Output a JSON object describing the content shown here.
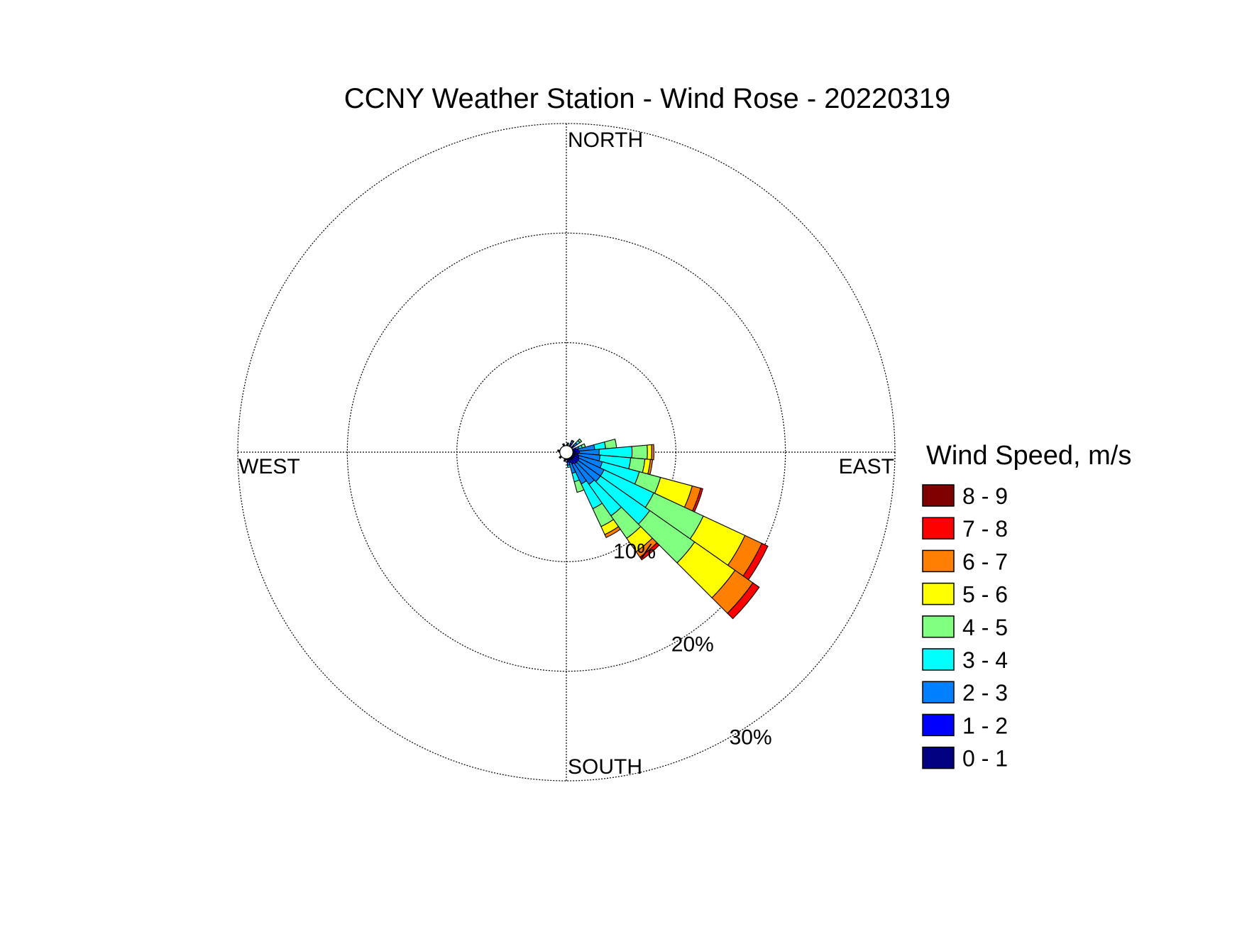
{
  "chart_data": {
    "type": "wind-rose",
    "title": "CCNY Weather Station - Wind Rose - 20220319",
    "directions": {
      "north": "NORTH",
      "east": "EAST",
      "south": "SOUTH",
      "west": "WEST"
    },
    "radial_axis": {
      "unit": "percent",
      "max": 30,
      "ticks": [
        10,
        20,
        30
      ],
      "tick_labels": [
        "10%",
        "20%",
        "30%"
      ]
    },
    "grid": true,
    "legend": {
      "title": "Wind Speed, m/s",
      "placement": "right",
      "bins": [
        {
          "label": "8 - 9",
          "color": "#800000"
        },
        {
          "label": "7 - 8",
          "color": "#ff0000"
        },
        {
          "label": "6 - 7",
          "color": "#ff8000"
        },
        {
          "label": "5 - 6",
          "color": "#ffff00"
        },
        {
          "label": "4 - 5",
          "color": "#80ff80"
        },
        {
          "label": "3 - 4",
          "color": "#00ffff"
        },
        {
          "label": "2 - 3",
          "color": "#0080ff"
        },
        {
          "label": "1 - 2",
          "color": "#0000ff"
        },
        {
          "label": "0 - 1",
          "color": "#000080"
        }
      ]
    },
    "calm_hole_percent": 0.6,
    "speed_bins_order": [
      "0 - 1",
      "1 - 2",
      "2 - 3",
      "3 - 4",
      "4 - 5",
      "5 - 6",
      "6 - 7",
      "7 - 8",
      "8 - 9"
    ],
    "sector_width_deg": 10,
    "sectors": [
      {
        "direction_deg": 10,
        "values": [
          0.05,
          0.1,
          0.1,
          0,
          0,
          0,
          0,
          0,
          0
        ]
      },
      {
        "direction_deg": 30,
        "values": [
          0.1,
          0.2,
          0.2,
          0.1,
          0,
          0,
          0,
          0,
          0
        ]
      },
      {
        "direction_deg": 50,
        "values": [
          0.1,
          0.2,
          0.3,
          0.3,
          0.2,
          0,
          0,
          0,
          0
        ]
      },
      {
        "direction_deg": 70,
        "values": [
          0.1,
          0.2,
          0.3,
          0.3,
          0.3,
          0,
          0,
          0,
          0
        ]
      },
      {
        "direction_deg": 80,
        "values": [
          0.2,
          0.3,
          1.5,
          1.0,
          1.0,
          0,
          0,
          0,
          0
        ]
      },
      {
        "direction_deg": 90,
        "values": [
          0.2,
          0.4,
          1.8,
          3.0,
          1.4,
          0.4,
          0.2,
          0,
          0
        ]
      },
      {
        "direction_deg": 100,
        "values": [
          0.2,
          0.3,
          2.0,
          2.8,
          1.3,
          0.5,
          0.2,
          0,
          0
        ]
      },
      {
        "direction_deg": 110,
        "values": [
          0.2,
          0.4,
          2.2,
          3.5,
          2.0,
          3.0,
          0.8,
          0.2,
          0
        ]
      },
      {
        "direction_deg": 120,
        "values": [
          0.2,
          0.5,
          2.5,
          5.0,
          5.0,
          4.2,
          1.7,
          0.6,
          0
        ]
      },
      {
        "direction_deg": 130,
        "values": [
          0.2,
          0.5,
          2.5,
          5.5,
          5.0,
          4.5,
          2.0,
          0.7,
          0
        ]
      },
      {
        "direction_deg": 140,
        "values": [
          0.2,
          0.5,
          2.3,
          3.5,
          2.5,
          1.5,
          0.6,
          0.3,
          0
        ]
      },
      {
        "direction_deg": 150,
        "values": [
          0.2,
          0.4,
          2.0,
          2.5,
          1.8,
          0.8,
          0.3,
          0,
          0
        ]
      },
      {
        "direction_deg": 160,
        "values": [
          0.1,
          0.3,
          1.0,
          0.8,
          1.0,
          0,
          0,
          0,
          0
        ]
      },
      {
        "direction_deg": 170,
        "values": [
          0.1,
          0.2,
          0.3,
          0.2,
          0,
          0,
          0,
          0,
          0
        ]
      },
      {
        "direction_deg": 190,
        "values": [
          0.05,
          0.1,
          0.1,
          0,
          0,
          0,
          0,
          0,
          0
        ]
      },
      {
        "direction_deg": 230,
        "values": [
          0.05,
          0.1,
          0.05,
          0,
          0,
          0,
          0,
          0,
          0
        ]
      },
      {
        "direction_deg": 280,
        "values": [
          0.05,
          0.1,
          0.05,
          0,
          0,
          0,
          0,
          0,
          0
        ]
      },
      {
        "direction_deg": 340,
        "values": [
          0.05,
          0.1,
          0.05,
          0,
          0,
          0,
          0,
          0,
          0
        ]
      }
    ]
  }
}
